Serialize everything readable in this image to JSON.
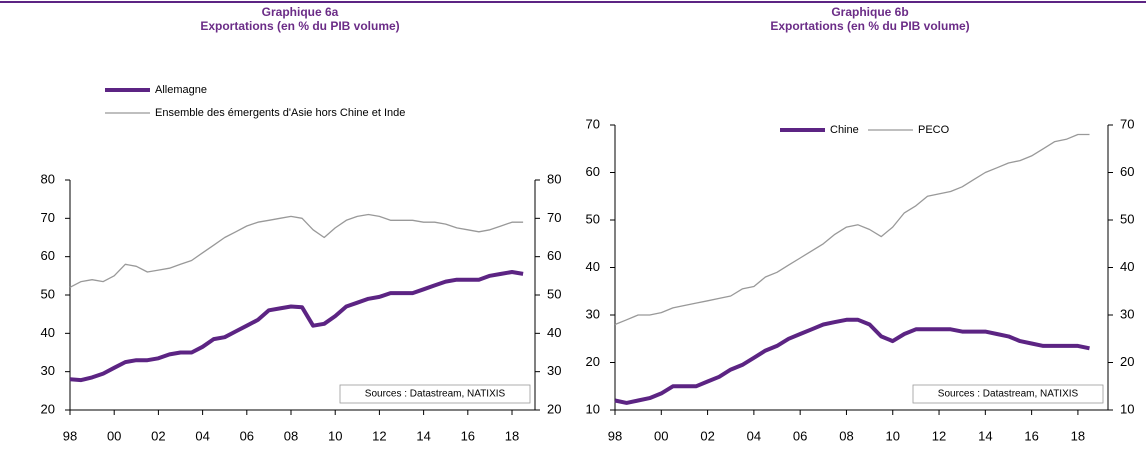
{
  "chart_data": [
    {
      "type": "line",
      "title": "Graphique 6a",
      "subtitle": "Exportations (en % du PIB volume)",
      "x": [
        1998,
        1998.5,
        1999,
        1999.5,
        2000,
        2000.5,
        2001,
        2001.5,
        2002,
        2002.5,
        2003,
        2003.5,
        2004,
        2004.5,
        2005,
        2005.5,
        2006,
        2006.5,
        2007,
        2007.5,
        2008,
        2008.5,
        2009,
        2009.5,
        2010,
        2010.5,
        2011,
        2011.5,
        2012,
        2012.5,
        2013,
        2013.5,
        2014,
        2014.5,
        2015,
        2015.5,
        2016,
        2016.5,
        2017,
        2017.5,
        2018,
        2018.5
      ],
      "series": [
        {
          "name": "Allemagne",
          "color": "#5c2483",
          "width": 4,
          "values": [
            28,
            27.8,
            28.5,
            29.5,
            31,
            32.5,
            33,
            33,
            33.5,
            34.5,
            35,
            35,
            36.5,
            38.5,
            39,
            40.5,
            42,
            43.5,
            46,
            46.5,
            47,
            46.8,
            42,
            42.5,
            44.5,
            47,
            48,
            49,
            49.5,
            50.5,
            50.5,
            50.5,
            51.5,
            52.5,
            53.5,
            54,
            54,
            54,
            55,
            55.5,
            56,
            55.5
          ]
        },
        {
          "name": "Ensemble des émergents d'Asie hors Chine et Inde",
          "color": "#999999",
          "width": 1.3,
          "values": [
            52,
            53.5,
            54,
            53.5,
            55,
            58,
            57.5,
            56,
            56.5,
            57,
            58,
            59,
            61,
            63,
            65,
            66.5,
            68,
            69,
            69.5,
            70,
            70.5,
            70,
            67,
            65,
            67.5,
            69.5,
            70.5,
            71,
            70.5,
            69.5,
            69.5,
            69.5,
            69,
            69,
            68.5,
            67.5,
            67,
            66.5,
            67,
            68,
            69,
            69
          ]
        }
      ],
      "xlim": [
        1998,
        2019.04
      ],
      "xticks": [
        {
          "value": 1998,
          "label": "98"
        },
        {
          "value": 2000,
          "label": "00"
        },
        {
          "value": 2002,
          "label": "02"
        },
        {
          "value": 2004,
          "label": "04"
        },
        {
          "value": 2006,
          "label": "06"
        },
        {
          "value": 2008,
          "label": "08"
        },
        {
          "value": 2010,
          "label": "10"
        },
        {
          "value": 2012,
          "label": "12"
        },
        {
          "value": 2014,
          "label": "14"
        },
        {
          "value": 2016,
          "label": "16"
        },
        {
          "value": 2018,
          "label": "18"
        }
      ],
      "ylim": [
        20,
        80
      ],
      "yticks": [
        20,
        30,
        40,
        50,
        60,
        70,
        80
      ],
      "y2lim": [
        20,
        80
      ],
      "y2ticks": [
        20,
        30,
        40,
        50,
        60,
        70,
        80
      ],
      "legend": "top-left",
      "annotation": "Sources : Datastream, NATIXIS"
    },
    {
      "type": "line",
      "title": "Graphique 6b",
      "subtitle": "Exportations (en % du PIB volume)",
      "x": [
        1998,
        1998.5,
        1999,
        1999.5,
        2000,
        2000.5,
        2001,
        2001.5,
        2002,
        2002.5,
        2003,
        2003.5,
        2004,
        2004.5,
        2005,
        2005.5,
        2006,
        2006.5,
        2007,
        2007.5,
        2008,
        2008.5,
        2009,
        2009.5,
        2010,
        2010.5,
        2011,
        2011.5,
        2012,
        2012.5,
        2013,
        2013.5,
        2014,
        2014.5,
        2015,
        2015.5,
        2016,
        2016.5,
        2017,
        2017.5,
        2018,
        2018.5
      ],
      "series": [
        {
          "name": "Chine",
          "color": "#5c2483",
          "width": 4,
          "values": [
            12,
            11.5,
            12,
            12.5,
            13.5,
            15,
            15,
            15,
            16,
            17,
            18.5,
            19.5,
            21,
            22.5,
            23.5,
            25,
            26,
            27,
            28,
            28.5,
            29,
            29,
            28,
            25.5,
            24.5,
            26,
            27,
            27,
            27,
            27,
            26.5,
            26.5,
            26.5,
            26,
            25.5,
            24.5,
            24,
            23.5,
            23.5,
            23.5,
            23.5,
            23
          ]
        },
        {
          "name": "PECO",
          "color": "#999999",
          "width": 1.3,
          "values": [
            28,
            29,
            30,
            30,
            30.5,
            31.5,
            32,
            32.5,
            33,
            33.5,
            34,
            35.5,
            36,
            38,
            39,
            40.5,
            42,
            43.5,
            45,
            47,
            48.5,
            49,
            48,
            46.5,
            48.5,
            51.5,
            53,
            55,
            55.5,
            56,
            57,
            58.5,
            60,
            61,
            62,
            62.5,
            63.5,
            65,
            66.5,
            67,
            68,
            68
          ]
        }
      ],
      "xlim": [
        1998,
        2019.3
      ],
      "xticks": [
        {
          "value": 1998,
          "label": "98"
        },
        {
          "value": 2000,
          "label": "00"
        },
        {
          "value": 2002,
          "label": "02"
        },
        {
          "value": 2004,
          "label": "04"
        },
        {
          "value": 2006,
          "label": "06"
        },
        {
          "value": 2008,
          "label": "08"
        },
        {
          "value": 2010,
          "label": "10"
        },
        {
          "value": 2012,
          "label": "12"
        },
        {
          "value": 2014,
          "label": "14"
        },
        {
          "value": 2016,
          "label": "16"
        },
        {
          "value": 2018,
          "label": "18"
        }
      ],
      "ylim": [
        10,
        70
      ],
      "yticks": [
        10,
        20,
        30,
        40,
        50,
        60,
        70
      ],
      "y2lim": [
        10,
        70
      ],
      "y2ticks": [
        10,
        20,
        30,
        40,
        50,
        60,
        70
      ],
      "legend": "top",
      "annotation": "Sources : Datastream, NATIXIS"
    }
  ]
}
